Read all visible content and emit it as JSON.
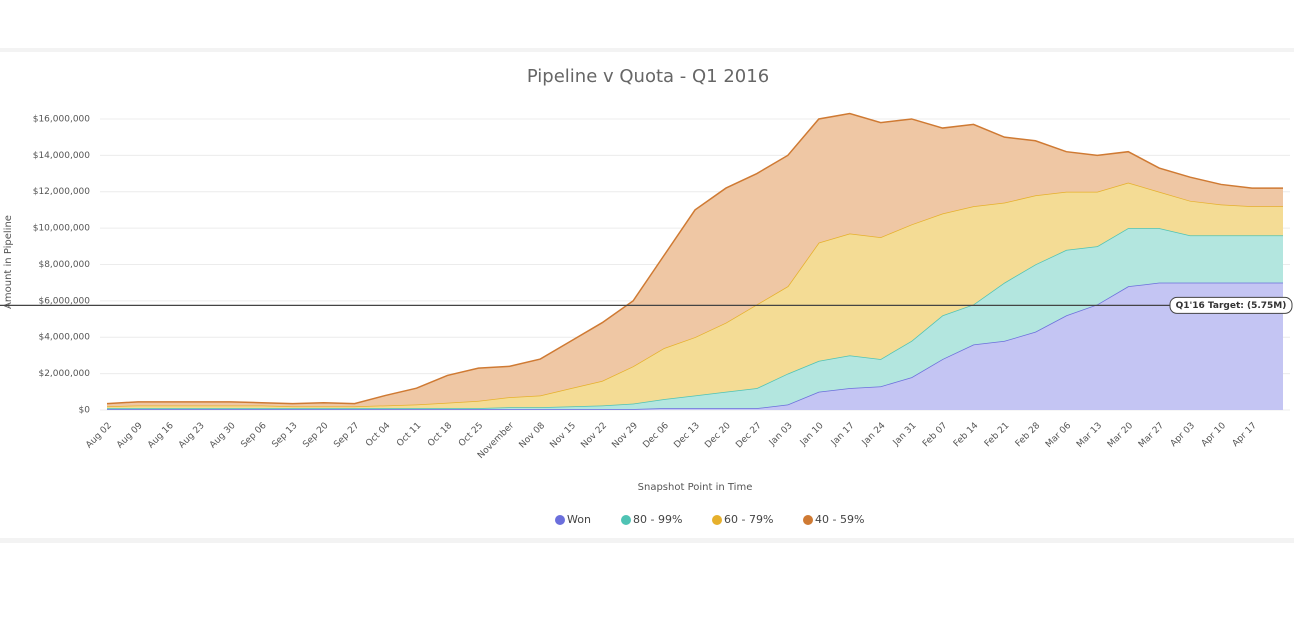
{
  "chart_data": {
    "type": "stacked_area",
    "title": "Pipeline v Quota - Q1 2016",
    "y_label": "Amount in Pipeline",
    "x_label": "Snapshot Point in Time",
    "categories": [
      "Aug 02",
      "Aug 09",
      "Aug 16",
      "Aug 23",
      "Aug 30",
      "Sep 06",
      "Sep 13",
      "Sep 20",
      "Sep 27",
      "Oct 04",
      "Oct 11",
      "Oct 18",
      "Oct 25",
      "November",
      "Nov 08",
      "Nov 15",
      "Nov 22",
      "Nov 29",
      "Dec 06",
      "Dec 13",
      "Dec 20",
      "Dec 27",
      "Jan 03",
      "Jan 10",
      "Jan 17",
      "Jan 24",
      "Jan 31",
      "Feb 07",
      "Feb 14",
      "Feb 21",
      "Feb 28",
      "Mar 06",
      "Mar 13",
      "Mar 20",
      "Mar 27",
      "Apr 03",
      "Apr 10",
      "Apr 17",
      null
    ],
    "series": [
      {
        "name": "Won",
        "color": "#6b6fdc",
        "fill": "#c4c5f3",
        "values": [
          50000,
          50000,
          50000,
          50000,
          50000,
          50000,
          50000,
          50000,
          50000,
          50000,
          50000,
          50000,
          50000,
          50000,
          50000,
          50000,
          50000,
          50000,
          100000,
          100000,
          100000,
          100000,
          300000,
          1000000,
          1200000,
          1300000,
          1800000,
          2800000,
          3600000,
          3800000,
          4300000,
          5200000,
          5800000,
          6800000,
          7000000,
          7000000,
          7000000,
          7000000,
          7000000
        ]
      },
      {
        "name": "80 - 99%",
        "color": "#4fc3b4",
        "fill": "#b3e6df",
        "values": [
          50000,
          50000,
          50000,
          50000,
          50000,
          50000,
          50000,
          50000,
          50000,
          50000,
          50000,
          50000,
          50000,
          100000,
          100000,
          150000,
          200000,
          300000,
          500000,
          700000,
          900000,
          1100000,
          1700000,
          1700000,
          1800000,
          1500000,
          2000000,
          2400000,
          2200000,
          3200000,
          3700000,
          3600000,
          3200000,
          3200000,
          3000000,
          2600000,
          2600000,
          2600000,
          2600000
        ]
      },
      {
        "name": "60 - 79%",
        "color": "#e6b02c",
        "fill": "#f4dc95",
        "values": [
          100000,
          150000,
          150000,
          150000,
          150000,
          150000,
          100000,
          100000,
          100000,
          150000,
          200000,
          300000,
          400000,
          550000,
          650000,
          1000000,
          1350000,
          2050000,
          2800000,
          3200000,
          3800000,
          4600000,
          4800000,
          6500000,
          6700000,
          6700000,
          6400000,
          5600000,
          5400000,
          4400000,
          3800000,
          3200000,
          3000000,
          2500000,
          2000000,
          1900000,
          1700000,
          1600000,
          1600000
        ]
      },
      {
        "name": "40 - 59%",
        "color": "#cf7a33",
        "fill": "#efc7a4",
        "values": [
          150000,
          200000,
          200000,
          200000,
          200000,
          150000,
          150000,
          200000,
          150000,
          550000,
          900000,
          1500000,
          1800000,
          1700000,
          2000000,
          2600000,
          3200000,
          3600000,
          5100000,
          7000000,
          7400000,
          7200000,
          7200000,
          6800000,
          6600000,
          6300000,
          5800000,
          4700000,
          4500000,
          3600000,
          3000000,
          2200000,
          2000000,
          1700000,
          1300000,
          1300000,
          1100000,
          1000000,
          1000000
        ]
      }
    ],
    "ylim": [
      0,
      17000000
    ],
    "yticks": [
      {
        "value": 0,
        "label": "$0"
      },
      {
        "value": 2000000,
        "label": "$2,000,000"
      },
      {
        "value": 4000000,
        "label": "$4,000,000"
      },
      {
        "value": 6000000,
        "label": "$6,000,000"
      },
      {
        "value": 8000000,
        "label": "$8,000,000"
      },
      {
        "value": 10000000,
        "label": "$10,000,000"
      },
      {
        "value": 12000000,
        "label": "$12,000,000"
      },
      {
        "value": 14000000,
        "label": "$14,000,000"
      },
      {
        "value": 16000000,
        "label": "$16,000,000"
      }
    ],
    "grid": true,
    "target": {
      "value": 5750000,
      "label": "Q1'16 Target: (5.75M)"
    }
  }
}
